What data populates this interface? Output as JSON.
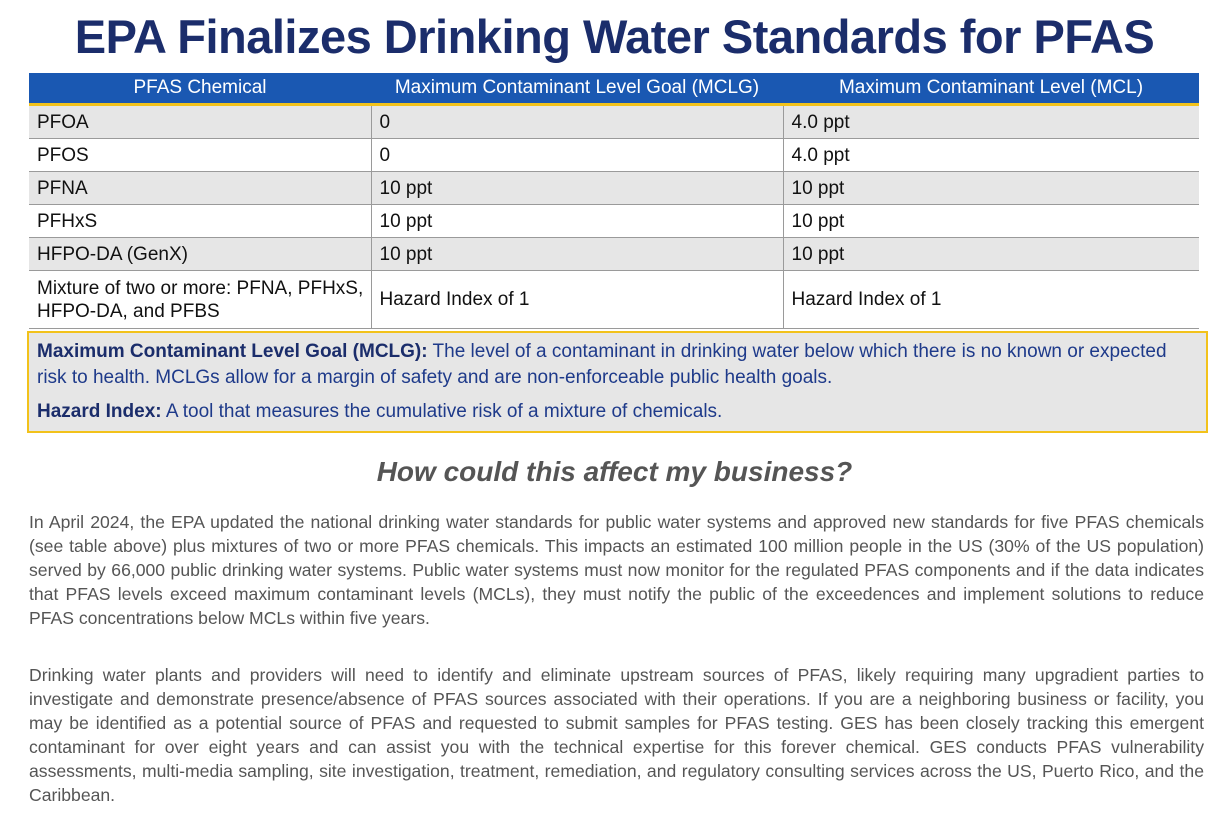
{
  "title": "EPA Finalizes Drinking Water Standards for PFAS",
  "table": {
    "headers": [
      "PFAS Chemical",
      "Maximum Contaminant Level Goal (MCLG)",
      "Maximum Contaminant Level (MCL)"
    ],
    "rows": [
      [
        "PFOA",
        "0",
        "4.0 ppt"
      ],
      [
        "PFOS",
        "0",
        "4.0 ppt"
      ],
      [
        "PFNA",
        "10 ppt",
        "10 ppt"
      ],
      [
        "PFHxS",
        "10 ppt",
        "10 ppt"
      ],
      [
        "HFPO-DA (GenX)",
        "10 ppt",
        "10 ppt"
      ],
      [
        "Mixture of two or more: PFNA, PFHxS, HFPO-DA, and PFBS",
        "Hazard Index of 1",
        "Hazard Index of 1"
      ]
    ]
  },
  "notes": {
    "mclg_term": "Maximum Contaminant Level Goal (MCLG):",
    "mclg_text": " The level of a contaminant in drinking water below which there is no known or expected risk to health. MCLGs allow for a margin of safety and are non-enforceable public health goals.",
    "hi_term": "Hazard Index:",
    "hi_text": " A tool that measures the cumulative risk of a mixture of chemicals."
  },
  "subheading": "How could this affect my business?",
  "paragraphs": [
    "In April 2024, the EPA updated the national drinking water standards for public water systems and approved new standards for five PFAS chemicals (see table above) plus mixtures of two or more PFAS chemicals. This impacts an estimated 100 million people in the US (30% of the US population) served by 66,000 public drinking water systems.  Public water systems must now monitor for the regulated PFAS components and if the data indicates that PFAS levels exceed maximum contaminant levels (MCLs), they must notify the public of the exceedences and implement solutions to reduce PFAS concentrations below MCLs within five years.",
    "Drinking water plants and providers will need to identify and eliminate upstream sources of PFAS, likely requiring many upgradient parties to investigate and demonstrate presence/absence of PFAS sources associated with their operations. If you are a neighboring business or facility, you may be identified as a potential source of PFAS and requested to submit samples for PFAS testing. GES has been closely tracking this emergent contaminant for over eight years and can assist you with the technical expertise for this forever chemical.  GES conducts PFAS vulnerability assessments, multi-media sampling, site investigation, treatment, remediation, and regulatory consulting services across the US, Puerto Rico, and the Caribbean."
  ],
  "colors": {
    "title": "#1b2d6b",
    "header_bg": "#1a58b2",
    "accent_yellow": "#f2c21b",
    "row_shade": "#e6e6e6",
    "body_text": "#555555"
  }
}
